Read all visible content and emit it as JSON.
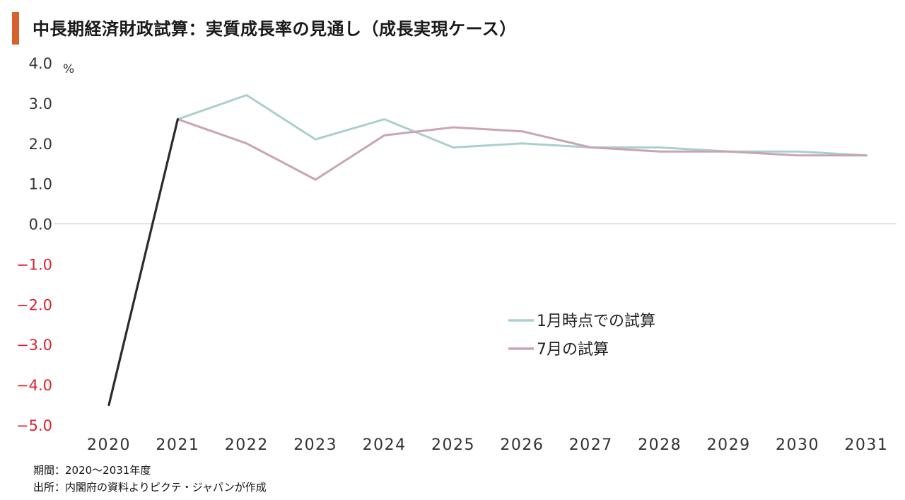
{
  "title": "中長期経済財政試算：実質成長率の見通し（成長実現ケース）",
  "footnotes": {
    "period": "期間：2020～2031年度",
    "source": "出所：内閣府の資料よりピクテ・ジャパンが作成"
  },
  "colors": {
    "title_bar": "#d4622a",
    "series_jan": "#a9d0cc",
    "series_jul": "#c9a4b5",
    "series_2020": "#2b2b2b",
    "negative_tick": "#e0202a",
    "positive_tick": "#333333",
    "zero_line": "#cccccc"
  },
  "chart_data": {
    "type": "line",
    "title": "中長期経済財政試算：実質成長率の見通し（成長実現ケース）",
    "ylabel": "%",
    "ylim": [
      -5.0,
      4.0
    ],
    "yticks": [
      "4.0",
      "3.0",
      "2.0",
      "1.0",
      "0.0",
      "−1.0",
      "−2.0",
      "−3.0",
      "−4.0",
      "−5.0"
    ],
    "ytick_values": [
      4,
      3,
      2,
      1,
      0,
      -1,
      -2,
      -3,
      -4,
      -5
    ],
    "categories": [
      "2020",
      "2021",
      "2022",
      "2023",
      "2024",
      "2025",
      "2026",
      "2027",
      "2028",
      "2029",
      "2030",
      "2031"
    ],
    "grid": false,
    "legend_position": "lower-right",
    "series": [
      {
        "name": "1月時点での試算",
        "values": [
          null,
          2.6,
          3.2,
          2.1,
          2.6,
          1.9,
          2.0,
          1.9,
          1.9,
          1.8,
          1.8,
          1.7
        ]
      },
      {
        "name": "7月の試算",
        "values": [
          null,
          2.6,
          2.0,
          1.1,
          2.2,
          2.4,
          2.3,
          1.9,
          1.8,
          1.8,
          1.7,
          1.7
        ]
      },
      {
        "values": [
          -4.5,
          2.6,
          null,
          null,
          null,
          null,
          null,
          null,
          null,
          null,
          null,
          null
        ]
      }
    ]
  }
}
